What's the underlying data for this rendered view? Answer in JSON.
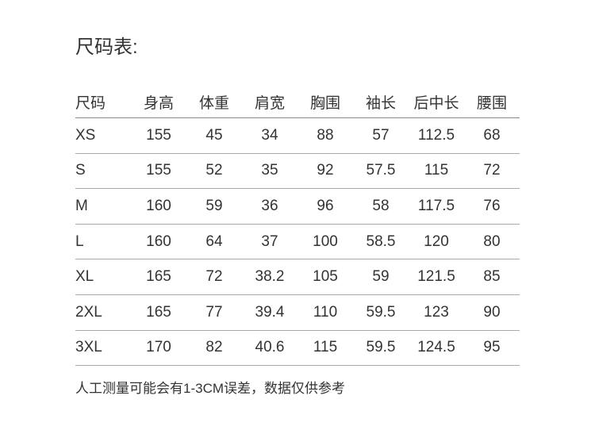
{
  "title": "尺码表:",
  "table": {
    "headers": [
      "尺码",
      "身高",
      "体重",
      "肩宽",
      "胸围",
      "袖长",
      "后中长",
      "腰围"
    ],
    "rows": [
      [
        "XS",
        "155",
        "45",
        "34",
        "88",
        "57",
        "112.5",
        "68"
      ],
      [
        "S",
        "155",
        "52",
        "35",
        "92",
        "57.5",
        "115",
        "72"
      ],
      [
        "M",
        "160",
        "59",
        "36",
        "96",
        "58",
        "117.5",
        "76"
      ],
      [
        "L",
        "160",
        "64",
        "37",
        "100",
        "58.5",
        "120",
        "80"
      ],
      [
        "XL",
        "165",
        "72",
        "38.2",
        "105",
        "59",
        "121.5",
        "85"
      ],
      [
        "2XL",
        "165",
        "77",
        "39.4",
        "110",
        "59.5",
        "123",
        "90"
      ],
      [
        "3XL",
        "170",
        "82",
        "40.6",
        "115",
        "59.5",
        "124.5",
        "95"
      ]
    ]
  },
  "note": "人工测量可能会有1-3CM误差，数据仅供参考"
}
